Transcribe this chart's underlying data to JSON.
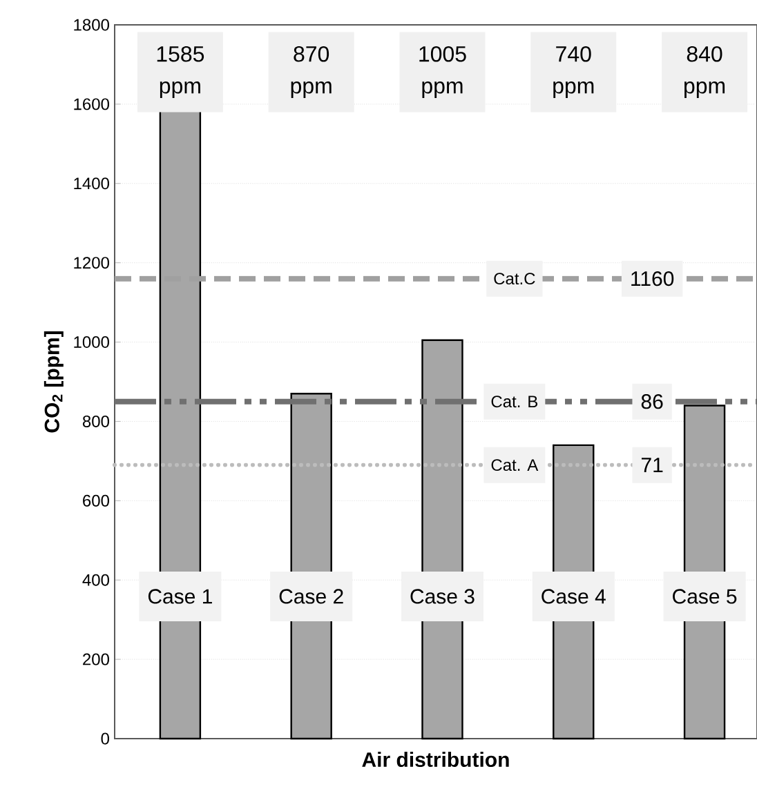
{
  "chart_data": {
    "type": "bar",
    "xlabel": "Air distribution",
    "ylabel": "CO$_{2}$ [ppm]",
    "categories": [
      "Case 1",
      "Case 2",
      "Case 3",
      "Case 4",
      "Case 5"
    ],
    "values": [
      1585,
      870,
      1005,
      740,
      840
    ],
    "color": "#a6a6a6",
    "ylim": [
      0,
      1800
    ],
    "yticks": [
      0,
      200,
      400,
      600,
      800,
      1000,
      1200,
      1400,
      1600,
      1800
    ],
    "grid": "y",
    "ref_lines": [
      {
        "axis": "y",
        "value": 1160,
        "label": "Cat.C",
        "color": "#a0a0a0",
        "line_style": "dashed"
      },
      {
        "axis": "y",
        "value": 850,
        "label": "Cat. B",
        "color": "#707070",
        "line_style": "dashdot"
      },
      {
        "axis": "y",
        "value": 690,
        "label": "Cat. A",
        "color": "#bcbcbc",
        "line_style": "dotted"
      }
    ],
    "annotations": [
      "1585 ppm",
      "870 ppm",
      "1005 ppm",
      "740 ppm",
      "840 ppm",
      "1160",
      "86",
      "71"
    ]
  }
}
